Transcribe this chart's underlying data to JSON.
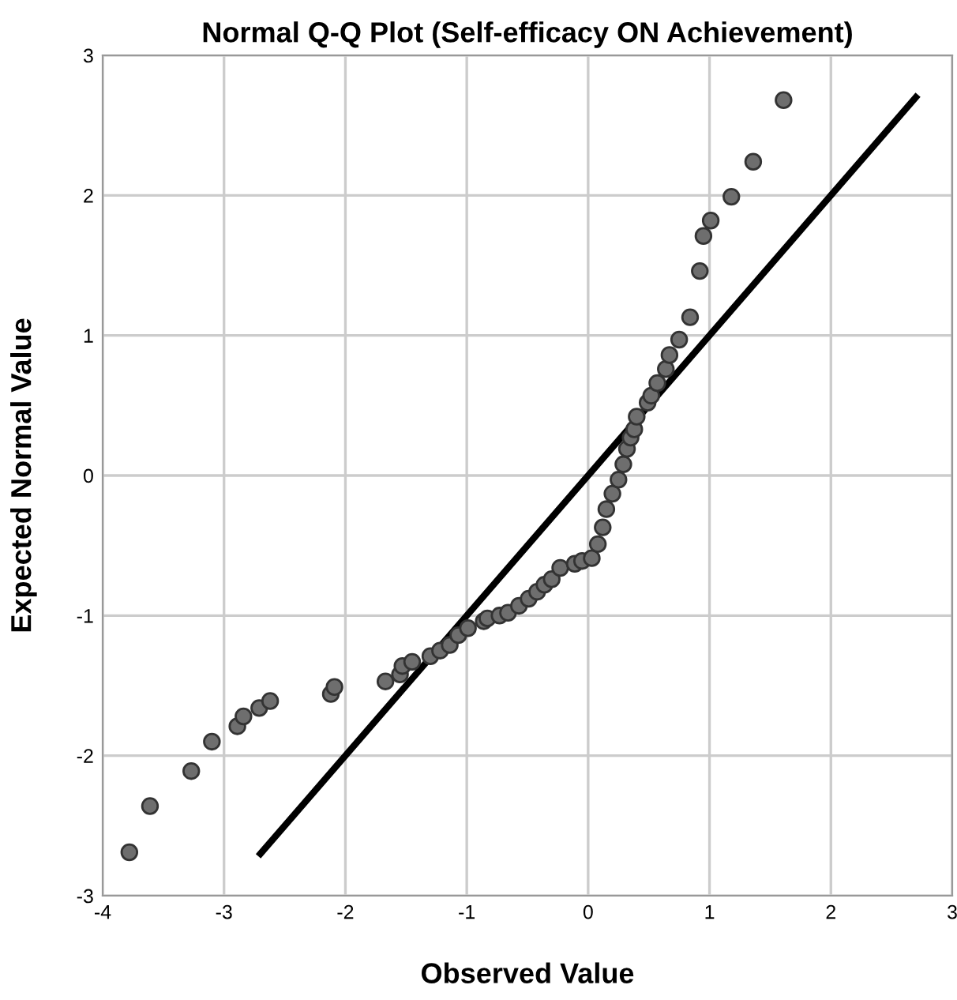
{
  "chart_data": {
    "type": "scatter",
    "title": "Normal Q-Q Plot (Self-efficacy ON Achievement)",
    "xlabel": "Observed Value",
    "ylabel": "Expected Normal Value",
    "xlim": [
      -4,
      3
    ],
    "ylim": [
      -3,
      3
    ],
    "xticks": [
      -4,
      -3,
      -2,
      -1,
      0,
      1,
      2,
      3
    ],
    "yticks": [
      -3,
      -2,
      -1,
      0,
      1,
      2,
      3
    ],
    "grid": true,
    "series": [
      {
        "color": "#6e6e6e",
        "marker": "circle",
        "x": [
          -3.78,
          -3.61,
          -3.27,
          -3.1,
          -2.89,
          -2.84,
          -2.71,
          -2.62,
          -2.12,
          -2.09,
          -1.67,
          -1.55,
          -1.53,
          -1.45,
          -1.3,
          -1.22,
          -1.14,
          -1.07,
          -0.99,
          -0.86,
          -0.83,
          -0.73,
          -0.66,
          -0.57,
          -0.49,
          -0.42,
          -0.36,
          -0.3,
          -0.23,
          -0.11,
          -0.05,
          0.03,
          0.08,
          0.12,
          0.15,
          0.2,
          0.25,
          0.29,
          0.32,
          0.35,
          0.38,
          0.4,
          0.49,
          0.52,
          0.57,
          0.64,
          0.67,
          0.75,
          0.84,
          0.92,
          0.95,
          1.01,
          1.18,
          1.36,
          1.61
        ],
        "values": [
          -2.69,
          -2.36,
          -2.11,
          -1.9,
          -1.79,
          -1.72,
          -1.66,
          -1.61,
          -1.56,
          -1.51,
          -1.47,
          -1.42,
          -1.36,
          -1.33,
          -1.29,
          -1.25,
          -1.21,
          -1.14,
          -1.09,
          -1.04,
          -1.02,
          -1.0,
          -0.98,
          -0.93,
          -0.88,
          -0.83,
          -0.78,
          -0.74,
          -0.66,
          -0.63,
          -0.61,
          -0.59,
          -0.49,
          -0.37,
          -0.24,
          -0.13,
          -0.03,
          0.08,
          0.19,
          0.27,
          0.33,
          0.42,
          0.52,
          0.57,
          0.66,
          0.76,
          0.86,
          0.97,
          1.13,
          1.46,
          1.71,
          1.82,
          1.99,
          2.24,
          2.68
        ]
      },
      {
        "type": "line",
        "color": "#000000",
        "x": [
          -2.7,
          2.7
        ],
        "values": [
          -2.7,
          2.7
        ]
      }
    ]
  }
}
